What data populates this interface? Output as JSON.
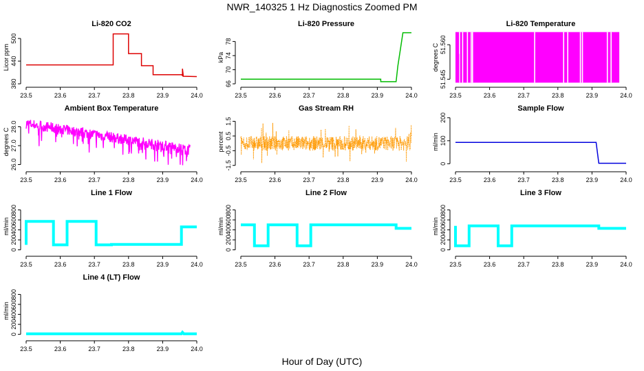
{
  "title": "NWR_140325  1 Hz Diagnostics Zoomed PM",
  "xlabel": "Hour of Day (UTC)",
  "chart_data": [
    {
      "type": "line",
      "title": "Li-820 CO2",
      "ylabel": "Licor ppm",
      "color": "#dd0000",
      "xlim": [
        23.5,
        24.0
      ],
      "xticks": [
        23.5,
        23.6,
        23.7,
        23.8,
        23.9,
        24.0
      ],
      "xtick_labels": [
        "23.5",
        "23.6",
        "23.7",
        "23.8",
        "23.9",
        "24.0"
      ],
      "ylim": [
        380,
        520
      ],
      "yticks": [
        380,
        440,
        500
      ],
      "ytick_labels": [
        "380",
        "440",
        "500"
      ],
      "series": [
        {
          "name": "CO2",
          "x": [
            23.5,
            23.7,
            23.755,
            23.755,
            23.8,
            23.8,
            23.838,
            23.838,
            23.872,
            23.872,
            23.955,
            23.958,
            23.958,
            23.96,
            23.96,
            24.0
          ],
          "y": [
            430,
            430,
            430,
            512,
            512,
            460,
            460,
            428,
            428,
            404,
            404,
            402,
            420,
            404,
            400,
            399
          ]
        }
      ]
    },
    {
      "type": "line",
      "title": "Li-820 Pressure",
      "ylabel": "kPa",
      "color": "#00bb00",
      "xlim": [
        23.5,
        24.0
      ],
      "xticks": [
        23.5,
        23.6,
        23.7,
        23.8,
        23.9,
        24.0
      ],
      "xtick_labels": [
        "23.5",
        "23.6",
        "23.7",
        "23.8",
        "23.9",
        "24.0"
      ],
      "ylim": [
        66,
        81
      ],
      "yticks": [
        66,
        70,
        74,
        78
      ],
      "ytick_labels": [
        "66",
        "70",
        "74",
        "78"
      ],
      "series": [
        {
          "name": "Pressure",
          "x": [
            23.5,
            23.91,
            23.91,
            23.955,
            23.96,
            23.968,
            23.975,
            24.0
          ],
          "y": [
            67.3,
            67.3,
            66.6,
            66.6,
            71,
            76,
            80.5,
            80.5
          ]
        }
      ]
    },
    {
      "type": "area",
      "title": "Li-820 Temperature",
      "ylabel": "degrees C",
      "color": "#ff00ff",
      "xlim": [
        23.5,
        24.0
      ],
      "xticks": [
        23.5,
        23.6,
        23.7,
        23.8,
        23.9,
        24.0
      ],
      "xtick_labels": [
        "23.5",
        "23.6",
        "23.7",
        "23.8",
        "23.9",
        "24.0"
      ],
      "ylim": [
        51.543,
        51.566
      ],
      "yticks": [
        51.545,
        51.56
      ],
      "ytick_labels": [
        "51.545",
        "51.560"
      ],
      "series": [
        {
          "name": "Temperature",
          "x": [
            23.5,
            23.98
          ],
          "y_low": [
            51.5435,
            51.5435
          ],
          "y_high": [
            51.5655,
            51.5655
          ]
        }
      ],
      "gaps_x": [
        23.512,
        23.521,
        23.535,
        23.546,
        23.55,
        23.732,
        23.817,
        23.829,
        23.866,
        23.872,
        23.945,
        23.956
      ]
    },
    {
      "type": "line",
      "title": "Ambient Box Temperature",
      "ylabel": "degrees C",
      "color": "#ff00ff",
      "xlim": [
        23.5,
        24.0
      ],
      "xticks": [
        23.5,
        23.6,
        23.7,
        23.8,
        23.9,
        24.0
      ],
      "xtick_labels": [
        "23.5",
        "23.6",
        "23.7",
        "23.8",
        "23.9",
        "24.0"
      ],
      "ylim": [
        25.8,
        28.6
      ],
      "yticks": [
        26.0,
        27.0,
        28.0
      ],
      "ytick_labels": [
        "26.0",
        "27.0",
        "28.0"
      ],
      "series": [
        {
          "name": "Box Temperature",
          "x": [
            23.5,
            23.98
          ],
          "y": [
            28.2,
            26.8
          ]
        }
      ]
    },
    {
      "type": "scatter",
      "title": "Gas Stream RH",
      "ylabel": "percent",
      "color": "#ff9900",
      "xlim": [
        23.5,
        24.0
      ],
      "xticks": [
        23.5,
        23.6,
        23.7,
        23.8,
        23.9,
        24.0
      ],
      "xtick_labels": [
        "23.5",
        "23.6",
        "23.7",
        "23.8",
        "23.9",
        "24.0"
      ],
      "ylim": [
        -1.7,
        1.9
      ],
      "yticks": [
        -1.5,
        -0.5,
        0.5,
        1.5
      ],
      "ytick_labels": [
        "-1.5",
        "-0.5",
        "0.5",
        "1.5"
      ],
      "series": [
        {
          "name": "RH",
          "x": [
            23.5,
            24.0
          ],
          "y": [
            0.0,
            0.0
          ]
        }
      ]
    },
    {
      "type": "line",
      "title": "Sample Flow",
      "ylabel": "ml/min",
      "color": "#0000dd",
      "xlim": [
        23.5,
        24.0
      ],
      "xticks": [
        23.5,
        23.6,
        23.7,
        23.8,
        23.9,
        24.0
      ],
      "xtick_labels": [
        "23.5",
        "23.6",
        "23.7",
        "23.8",
        "23.9",
        "24.0"
      ],
      "ylim": [
        -20,
        210
      ],
      "yticks": [
        0,
        100,
        200
      ],
      "ytick_labels": [
        "0",
        "100",
        "200"
      ],
      "series": [
        {
          "name": "Sample Flow",
          "x": [
            23.5,
            23.912,
            23.92,
            24.0
          ],
          "y": [
            93,
            93,
            2,
            2
          ]
        }
      ]
    },
    {
      "type": "line",
      "title": "Line 1 Flow",
      "ylabel": "ml/min",
      "color": "#00ffff",
      "xlim": [
        23.5,
        24.0
      ],
      "xticks": [
        23.5,
        23.6,
        23.7,
        23.8,
        23.9,
        24.0
      ],
      "xtick_labels": [
        "23.5",
        "23.6",
        "23.7",
        "23.8",
        "23.9",
        "24.0"
      ],
      "ylim": [
        -60,
        1000
      ],
      "yticks": [
        0,
        200,
        400,
        600,
        800
      ],
      "ytick_labels": [
        "0",
        "200",
        "400",
        "600",
        "800"
      ],
      "series": [
        {
          "name": "Line 1",
          "x": [
            23.5,
            23.5,
            23.58,
            23.58,
            23.62,
            23.62,
            23.705,
            23.705,
            23.75,
            23.75,
            23.955,
            23.955,
            24.0
          ],
          "y": [
            100,
            570,
            570,
            100,
            100,
            570,
            570,
            100,
            100,
            110,
            110,
            460,
            460
          ]
        }
      ]
    },
    {
      "type": "line",
      "title": "Line 2 Flow",
      "ylabel": "ml/min",
      "color": "#00ffff",
      "xlim": [
        23.5,
        24.0
      ],
      "xticks": [
        23.5,
        23.6,
        23.7,
        23.8,
        23.9,
        24.0
      ],
      "xtick_labels": [
        "23.5",
        "23.6",
        "23.7",
        "23.8",
        "23.9",
        "24.0"
      ],
      "ylim": [
        -60,
        1000
      ],
      "yticks": [
        0,
        200,
        400,
        600,
        800
      ],
      "ytick_labels": [
        "0",
        "200",
        "400",
        "600",
        "800"
      ],
      "series": [
        {
          "name": "Line 2",
          "x": [
            23.5,
            23.54,
            23.54,
            23.58,
            23.58,
            23.665,
            23.665,
            23.705,
            23.705,
            23.955,
            23.955,
            24.0
          ],
          "y": [
            500,
            500,
            80,
            80,
            500,
            500,
            80,
            80,
            500,
            500,
            430,
            430
          ]
        }
      ]
    },
    {
      "type": "line",
      "title": "Line 3 Flow",
      "ylabel": "ml/min",
      "color": "#00ffff",
      "xlim": [
        23.5,
        24.0
      ],
      "xticks": [
        23.5,
        23.6,
        23.7,
        23.8,
        23.9,
        24.0
      ],
      "xtick_labels": [
        "23.5",
        "23.6",
        "23.7",
        "23.8",
        "23.9",
        "24.0"
      ],
      "ylim": [
        -60,
        1000
      ],
      "yticks": [
        0,
        200,
        400,
        600,
        800
      ],
      "ytick_labels": [
        "0",
        "200",
        "400",
        "600",
        "800"
      ],
      "series": [
        {
          "name": "Line 3",
          "x": [
            23.5,
            23.5,
            23.54,
            23.54,
            23.625,
            23.625,
            23.665,
            23.665,
            23.92,
            23.92,
            24.0
          ],
          "y": [
            480,
            80,
            80,
            480,
            480,
            80,
            80,
            480,
            480,
            430,
            430
          ]
        }
      ]
    },
    {
      "type": "line",
      "title": "Line 4 (LT) Flow",
      "ylabel": "ml/min",
      "color": "#00ffff",
      "xlim": [
        23.5,
        24.0
      ],
      "xticks": [
        23.5,
        23.6,
        23.7,
        23.8,
        23.9,
        24.0
      ],
      "xtick_labels": [
        "23.5",
        "23.6",
        "23.7",
        "23.8",
        "23.9",
        "24.0"
      ],
      "ylim": [
        -60,
        1000
      ],
      "yticks": [
        0,
        200,
        400,
        600,
        800
      ],
      "ytick_labels": [
        "0",
        "200",
        "400",
        "600",
        "800"
      ],
      "series": [
        {
          "name": "Line 4",
          "x": [
            23.5,
            23.955,
            23.958,
            23.962,
            24.0
          ],
          "y": [
            10,
            10,
            40,
            10,
            10
          ]
        }
      ]
    }
  ]
}
